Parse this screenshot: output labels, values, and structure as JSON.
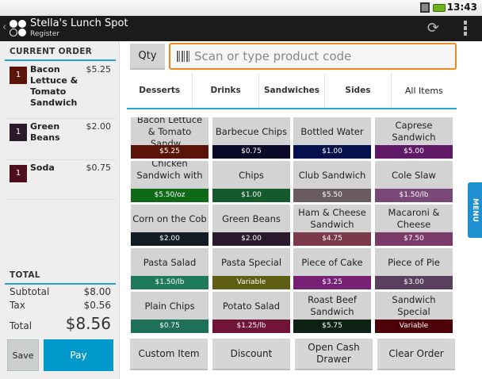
{
  "status": {
    "time": "13:43"
  },
  "app": {
    "title": "Stella's Lunch Spot",
    "subtitle": "Register"
  },
  "order": {
    "heading": "CURRENT ORDER",
    "items": [
      {
        "qty": "1",
        "name": "Bacon Lettuce & Tomato Sandwich",
        "price": "$5.25",
        "color": "#5a1408"
      },
      {
        "qty": "1",
        "name": "Green Beans",
        "price": "$2.00",
        "color": "#2a1a2c"
      },
      {
        "qty": "1",
        "name": "Soda",
        "price": "$0.75",
        "color": "#4e0e1e"
      }
    ]
  },
  "totals": {
    "heading": "TOTAL",
    "subtotal_label": "Subtotal",
    "subtotal": "$8.00",
    "tax_label": "Tax",
    "tax": "$0.56",
    "total_label": "Total",
    "total": "$8.56"
  },
  "buttons": {
    "save": "Save",
    "pay": "Pay",
    "qty": "Qty",
    "menu": "MENU"
  },
  "search": {
    "placeholder": "Scan or type product code"
  },
  "tabs": [
    "Desserts",
    "Drinks",
    "Sandwiches",
    "Sides",
    "All Items"
  ],
  "active_tab": "All Items",
  "products": [
    {
      "name": "Bacon Lettuce & Tomato Sandw...",
      "price": "$5.25",
      "color": "#5a1408"
    },
    {
      "name": "Barbecue Chips",
      "price": "$0.75",
      "color": "#0c0a28"
    },
    {
      "name": "Bottled Water",
      "price": "$1.00",
      "color": "#06104c"
    },
    {
      "name": "Caprese Sandwich",
      "price": "$5.00",
      "color": "#5e1a66"
    },
    {
      "name": "Chicken Sandwich with ...",
      "price": "$5.50/oz",
      "color": "#0e6a16"
    },
    {
      "name": "Chips",
      "price": "$1.00",
      "color": "#145a2c"
    },
    {
      "name": "Club Sandwich",
      "price": "$5.50",
      "color": "#6a5a62"
    },
    {
      "name": "Cole Slaw",
      "price": "$1.50/lb",
      "color": "#7a4876"
    },
    {
      "name": "Corn on the Cob",
      "price": "$2.00",
      "color": "#121c22"
    },
    {
      "name": "Green Beans",
      "price": "$2.00",
      "color": "#2a1a2c"
    },
    {
      "name": "Ham & Cheese Sandwich",
      "price": "$4.75",
      "color": "#7a3a4a"
    },
    {
      "name": "Macaroni & Cheese",
      "price": "$7.50",
      "color": "#7a3a6a"
    },
    {
      "name": "Pasta Salad",
      "price": "$1.50/lb",
      "color": "#1e7a5a"
    },
    {
      "name": "Pasta Special",
      "price": "Variable",
      "color": "#5e5e14"
    },
    {
      "name": "Piece of Cake",
      "price": "$3.25",
      "color": "#762076"
    },
    {
      "name": "Piece of Pie",
      "price": "$3.00",
      "color": "#58405e"
    },
    {
      "name": "Plain Chips",
      "price": "$0.75",
      "color": "#1e7058"
    },
    {
      "name": "Potato Salad",
      "price": "$1.25/lb",
      "color": "#701438"
    },
    {
      "name": "Roast Beef Sandwich",
      "price": "$5.75",
      "color": "#0e2214"
    },
    {
      "name": "Sandwich Special",
      "price": "Variable",
      "color": "#4e0008"
    }
  ],
  "actions": [
    "Custom Item",
    "Discount",
    "Open Cash Drawer",
    "Clear Order"
  ]
}
